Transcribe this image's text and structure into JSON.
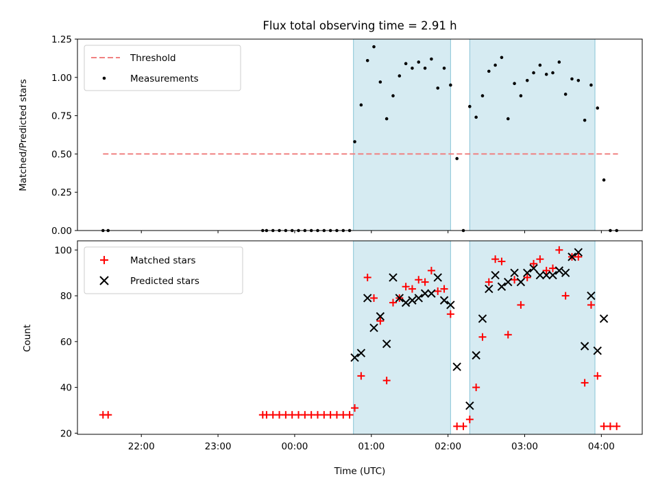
{
  "chart_data": [
    {
      "type": "scatter",
      "title": "Flux total observing time = 2.91 h",
      "ylabel": "Matched/Predicted stars",
      "xlabel": "",
      "x_axis": {
        "format": "time HH:MM UTC",
        "range": [
          "21:10",
          "04:32"
        ],
        "ticks": [
          "22:00",
          "23:00",
          "00:00",
          "01:00",
          "02:00",
          "03:00",
          "04:00"
        ]
      },
      "ylim": [
        0,
        1.25
      ],
      "yticks": [
        "0.00",
        "0.25",
        "0.50",
        "0.75",
        "1.00",
        "1.25"
      ],
      "grid": false,
      "legend": {
        "placement": "top-left",
        "entries": [
          "Threshold",
          "Measurements"
        ]
      },
      "shaded_intervals": [
        [
          "00:46",
          "02:02"
        ],
        [
          "02:17",
          "03:55"
        ]
      ],
      "threshold": {
        "name": "Threshold",
        "value": 0.5,
        "x_range": [
          "21:30",
          "04:13"
        ],
        "color": "#f08080"
      },
      "series": [
        {
          "name": "Measurements",
          "color": "#000000",
          "points": [
            [
              "21:30",
              0.0
            ],
            [
              "21:34",
              0.0
            ],
            [
              "23:35",
              0.0
            ],
            [
              "23:38",
              0.0
            ],
            [
              "23:43",
              0.0
            ],
            [
              "23:48",
              0.0
            ],
            [
              "23:53",
              0.0
            ],
            [
              "23:58",
              0.0
            ],
            [
              "00:03",
              0.0
            ],
            [
              "00:08",
              0.0
            ],
            [
              "00:13",
              0.0
            ],
            [
              "00:18",
              0.0
            ],
            [
              "00:23",
              0.0
            ],
            [
              "00:28",
              0.0
            ],
            [
              "00:33",
              0.0
            ],
            [
              "00:38",
              0.0
            ],
            [
              "00:43",
              0.0
            ],
            [
              "00:47",
              0.58
            ],
            [
              "00:52",
              0.82
            ],
            [
              "00:57",
              1.11
            ],
            [
              "01:02",
              1.2
            ],
            [
              "01:07",
              0.97
            ],
            [
              "01:12",
              0.73
            ],
            [
              "01:17",
              0.88
            ],
            [
              "01:22",
              1.01
            ],
            [
              "01:27",
              1.09
            ],
            [
              "01:32",
              1.06
            ],
            [
              "01:37",
              1.1
            ],
            [
              "01:42",
              1.06
            ],
            [
              "01:47",
              1.12
            ],
            [
              "01:52",
              0.93
            ],
            [
              "01:57",
              1.06
            ],
            [
              "02:02",
              0.95
            ],
            [
              "02:07",
              0.47
            ],
            [
              "02:12",
              0.0
            ],
            [
              "02:17",
              0.81
            ],
            [
              "02:22",
              0.74
            ],
            [
              "02:27",
              0.88
            ],
            [
              "02:32",
              1.04
            ],
            [
              "02:37",
              1.08
            ],
            [
              "02:42",
              1.13
            ],
            [
              "02:47",
              0.73
            ],
            [
              "02:52",
              0.96
            ],
            [
              "02:57",
              0.88
            ],
            [
              "03:02",
              0.98
            ],
            [
              "03:07",
              1.03
            ],
            [
              "03:12",
              1.08
            ],
            [
              "03:17",
              1.02
            ],
            [
              "03:22",
              1.03
            ],
            [
              "03:27",
              1.1
            ],
            [
              "03:32",
              0.89
            ],
            [
              "03:37",
              0.99
            ],
            [
              "03:42",
              0.98
            ],
            [
              "03:47",
              0.72
            ],
            [
              "03:52",
              0.95
            ],
            [
              "03:57",
              0.8
            ],
            [
              "04:02",
              0.33
            ],
            [
              "04:07",
              0.0
            ],
            [
              "04:12",
              0.0
            ]
          ]
        }
      ]
    },
    {
      "type": "scatter",
      "title": "",
      "ylabel": "Count",
      "xlabel": "Time (UTC)",
      "x_axis": {
        "format": "time HH:MM UTC",
        "range": [
          "21:10",
          "04:32"
        ],
        "ticks": [
          "22:00",
          "23:00",
          "00:00",
          "01:00",
          "02:00",
          "03:00",
          "04:00"
        ]
      },
      "ylim": [
        19.5,
        104
      ],
      "yticks": [
        "20",
        "40",
        "60",
        "80",
        "100"
      ],
      "grid": false,
      "legend": {
        "placement": "top-left",
        "entries": [
          "Matched stars",
          "Predicted stars"
        ]
      },
      "shaded_intervals": [
        [
          "00:46",
          "02:02"
        ],
        [
          "02:17",
          "03:55"
        ]
      ],
      "series": [
        {
          "name": "Matched stars",
          "marker": "plus",
          "color": "#ff0000",
          "points": [
            [
              "21:30",
              28
            ],
            [
              "21:34",
              28
            ],
            [
              "23:35",
              28
            ],
            [
              "23:38",
              28
            ],
            [
              "23:43",
              28
            ],
            [
              "23:48",
              28
            ],
            [
              "23:53",
              28
            ],
            [
              "23:58",
              28
            ],
            [
              "00:03",
              28
            ],
            [
              "00:08",
              28
            ],
            [
              "00:13",
              28
            ],
            [
              "00:18",
              28
            ],
            [
              "00:23",
              28
            ],
            [
              "00:28",
              28
            ],
            [
              "00:33",
              28
            ],
            [
              "00:38",
              28
            ],
            [
              "00:43",
              28
            ],
            [
              "00:47",
              31
            ],
            [
              "00:52",
              45
            ],
            [
              "00:57",
              88
            ],
            [
              "01:02",
              79
            ],
            [
              "01:07",
              69
            ],
            [
              "01:12",
              43
            ],
            [
              "01:17",
              77
            ],
            [
              "01:22",
              79
            ],
            [
              "01:27",
              84
            ],
            [
              "01:32",
              83
            ],
            [
              "01:37",
              87
            ],
            [
              "01:42",
              86
            ],
            [
              "01:47",
              91
            ],
            [
              "01:52",
              82
            ],
            [
              "01:57",
              83
            ],
            [
              "02:02",
              72
            ],
            [
              "02:07",
              23
            ],
            [
              "02:12",
              23
            ],
            [
              "02:17",
              26
            ],
            [
              "02:22",
              40
            ],
            [
              "02:27",
              62
            ],
            [
              "02:32",
              86
            ],
            [
              "02:37",
              96
            ],
            [
              "02:42",
              95
            ],
            [
              "02:47",
              63
            ],
            [
              "02:52",
              87
            ],
            [
              "02:57",
              76
            ],
            [
              "03:02",
              88
            ],
            [
              "03:07",
              94
            ],
            [
              "03:12",
              96
            ],
            [
              "03:17",
              91
            ],
            [
              "03:22",
              92
            ],
            [
              "03:27",
              100
            ],
            [
              "03:32",
              80
            ],
            [
              "03:37",
              97
            ],
            [
              "03:42",
              97
            ],
            [
              "03:47",
              42
            ],
            [
              "03:52",
              76
            ],
            [
              "03:57",
              45
            ],
            [
              "04:02",
              23
            ],
            [
              "04:07",
              23
            ],
            [
              "04:12",
              23
            ]
          ]
        },
        {
          "name": "Predicted stars",
          "marker": "x",
          "color": "#000000",
          "points": [
            [
              "00:47",
              53
            ],
            [
              "00:52",
              55
            ],
            [
              "00:57",
              79
            ],
            [
              "01:02",
              66
            ],
            [
              "01:07",
              71
            ],
            [
              "01:12",
              59
            ],
            [
              "01:17",
              88
            ],
            [
              "01:22",
              79
            ],
            [
              "01:27",
              77
            ],
            [
              "01:32",
              78
            ],
            [
              "01:37",
              79
            ],
            [
              "01:42",
              81
            ],
            [
              "01:47",
              81
            ],
            [
              "01:52",
              88
            ],
            [
              "01:57",
              78
            ],
            [
              "02:02",
              76
            ],
            [
              "02:07",
              49
            ],
            [
              "02:17",
              32
            ],
            [
              "02:22",
              54
            ],
            [
              "02:27",
              70
            ],
            [
              "02:32",
              83
            ],
            [
              "02:37",
              89
            ],
            [
              "02:42",
              84
            ],
            [
              "02:47",
              86
            ],
            [
              "02:52",
              90
            ],
            [
              "02:57",
              86
            ],
            [
              "03:02",
              90
            ],
            [
              "03:07",
              92
            ],
            [
              "03:12",
              89
            ],
            [
              "03:17",
              89
            ],
            [
              "03:22",
              89
            ],
            [
              "03:27",
              91
            ],
            [
              "03:32",
              90
            ],
            [
              "03:37",
              97
            ],
            [
              "03:42",
              99
            ],
            [
              "03:47",
              58
            ],
            [
              "03:52",
              80
            ],
            [
              "03:57",
              56
            ],
            [
              "04:02",
              70
            ]
          ]
        }
      ]
    }
  ]
}
